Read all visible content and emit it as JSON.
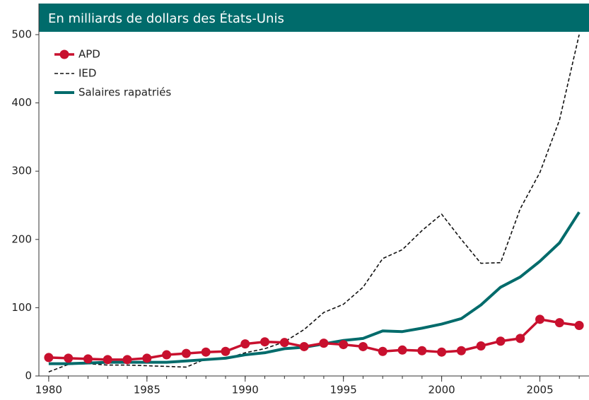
{
  "chart_data": {
    "type": "line",
    "title": "En milliards de dollars des États-Unis",
    "x": [
      1980,
      1981,
      1982,
      1983,
      1984,
      1985,
      1986,
      1987,
      1988,
      1989,
      1990,
      1991,
      1992,
      1993,
      1994,
      1995,
      1996,
      1997,
      1998,
      1999,
      2000,
      2001,
      2002,
      2003,
      2004,
      2005,
      2006,
      2007
    ],
    "series": [
      {
        "name": "APD",
        "color": "#c8102e",
        "style": "markers",
        "values": [
          27,
          26,
          25,
          24,
          24,
          26,
          31,
          33,
          35,
          36,
          47,
          50,
          49,
          43,
          48,
          46,
          43,
          36,
          38,
          37,
          35,
          37,
          44,
          51,
          55,
          83,
          78,
          74
        ]
      },
      {
        "name": "IED",
        "color": "#111111",
        "style": "dashed",
        "values": [
          6,
          17,
          18,
          16,
          16,
          15,
          14,
          13,
          25,
          25,
          34,
          40,
          50,
          68,
          93,
          105,
          130,
          172,
          185,
          213,
          237,
          200,
          165,
          166,
          245,
          298,
          375,
          500
        ]
      },
      {
        "name": "Salaires rapatriés",
        "color": "#006b6b",
        "style": "thick",
        "values": [
          18,
          18,
          19,
          20,
          20,
          20,
          20,
          22,
          24,
          26,
          31,
          34,
          40,
          42,
          47,
          52,
          55,
          66,
          65,
          70,
          76,
          84,
          104,
          130,
          145,
          168,
          195,
          240
        ]
      }
    ],
    "xlim": [
      1979.5,
      2007.5
    ],
    "xticks": [
      1980,
      1985,
      1990,
      1995,
      2000,
      2005
    ],
    "ylim": [
      0,
      500
    ],
    "yticks": [
      0,
      100,
      200,
      300,
      400,
      500
    ],
    "legend": "upper left",
    "header_color": "#006b6b"
  }
}
